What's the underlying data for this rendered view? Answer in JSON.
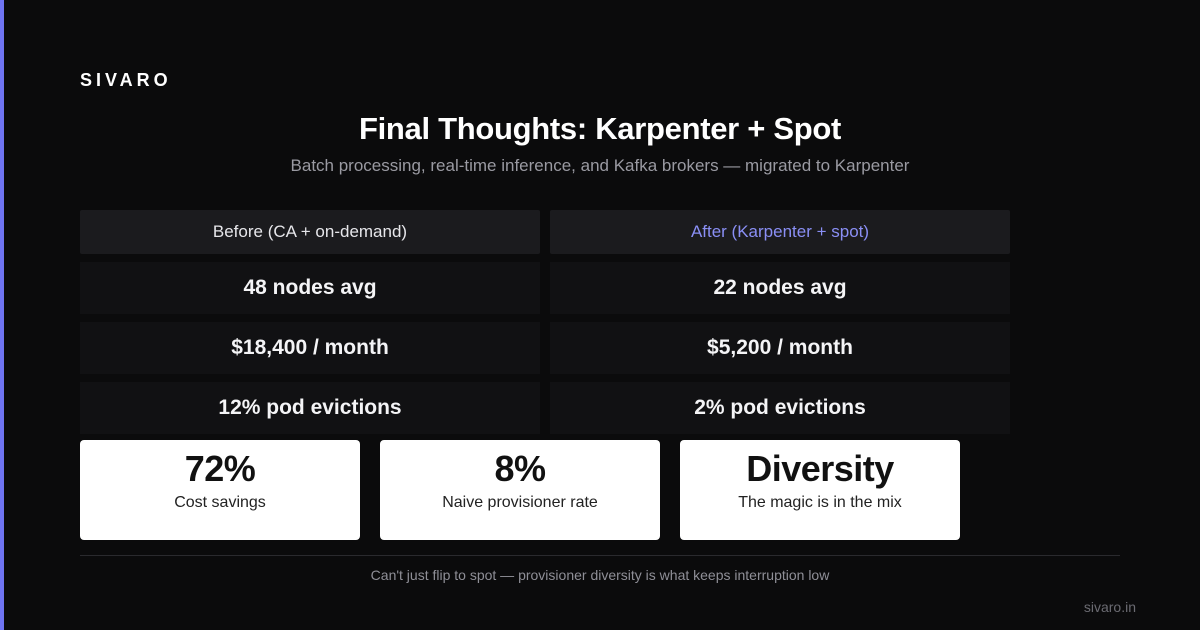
{
  "brand": "SIVARO",
  "title": "Final Thoughts: Karpenter + Spot",
  "subtitle": "Batch processing, real-time inference, and Kafka brokers — migrated to Karpenter",
  "comparison": {
    "headers": {
      "before": "Before (CA + on-demand)",
      "after": "After (Karpenter + spot)"
    },
    "rows": [
      {
        "before": "48 nodes avg",
        "after": "22 nodes avg"
      },
      {
        "before": "$18,400 / month",
        "after": "$5,200 / month"
      },
      {
        "before": "12% pod evictions",
        "after": "2% pod evictions"
      }
    ],
    "after_header_color": "#8a8ff5"
  },
  "stats": [
    {
      "value": "72%",
      "label": "Cost savings"
    },
    {
      "value": "8%",
      "label": "Naive provisioner rate"
    },
    {
      "value": "Diversity",
      "label": "The magic is in the mix"
    }
  ],
  "footer_note": "Can't just flip to spot — provisioner diversity is what keeps interruption low",
  "site": "sivaro.in",
  "colors": {
    "background": "#0b0b0c",
    "accent": "#6f74f2",
    "card": "#ffffff"
  }
}
